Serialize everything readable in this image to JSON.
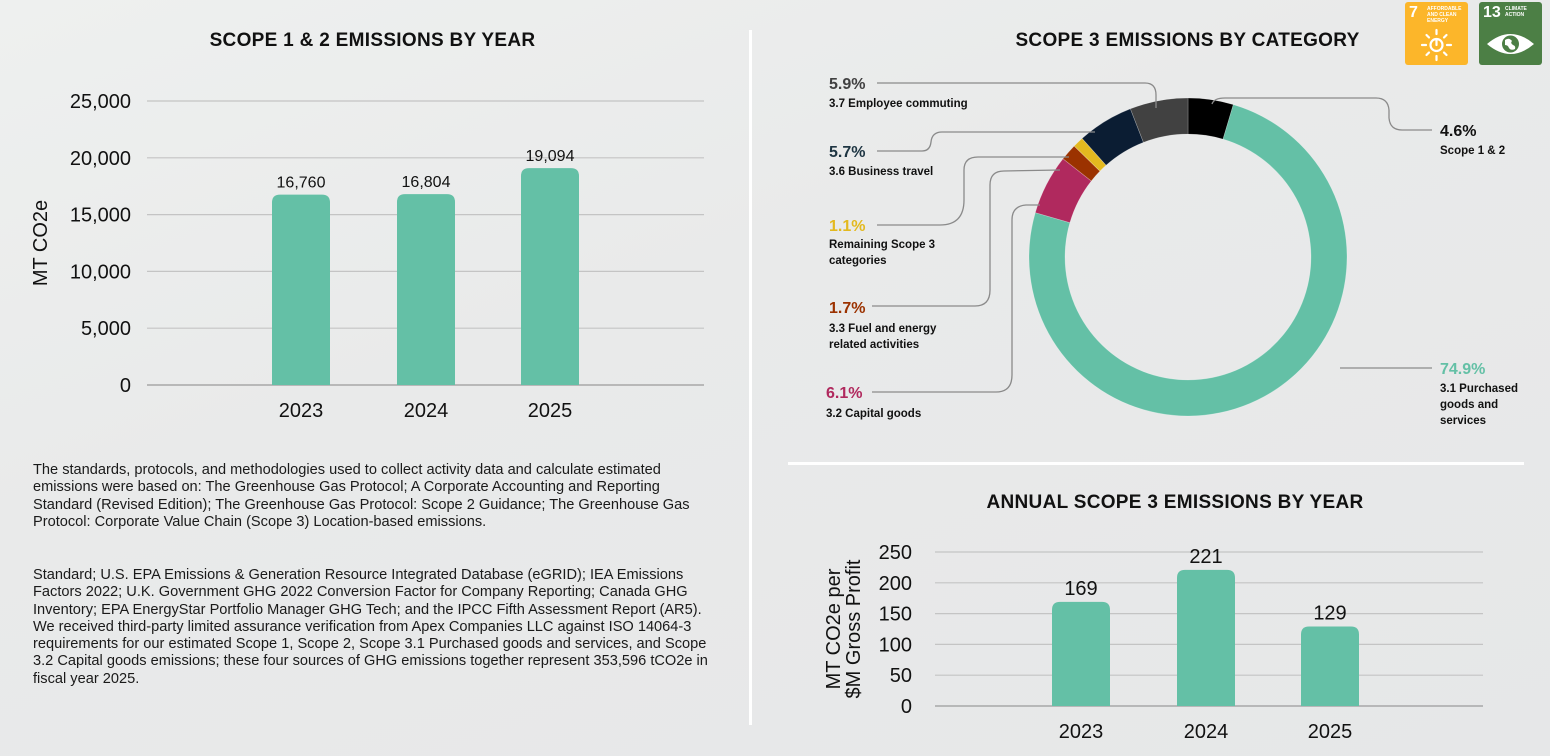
{
  "sdg_badges": [
    {
      "number": "7",
      "label": "Affordable and clean energy",
      "icon": "sun-power-icon",
      "color": "#FCB62A"
    },
    {
      "number": "13",
      "label": "Climate action",
      "icon": "eye-globe-icon",
      "color": "#4C7F45"
    }
  ],
  "paragraphs": [
    "The standards, protocols, and methodologies used to collect activity data and calculate estimated emissions were based on: The Greenhouse Gas Protocol; A Corporate Accounting and Reporting Standard (Revised Edition);  The Greenhouse Gas Protocol: Scope 2 Guidance; The Greenhouse Gas Protocol: Corporate Value Chain (Scope 3) Location-based emissions.",
    "Standard; U.S. EPA Emissions & Generation Resource Integrated Database (eGRID); IEA Emissions Factors 2022; U.K. Government GHG 2022 Conversion Factor for Company Reporting; Canada GHG Inventory; EPA EnergyStar Portfolio Manager GHG Tech; and the IPCC Fifth Assessment Report (AR5). We received third-party limited assurance verification from Apex Companies LLC against ISO 14064-3 requirements for our estimated Scope 1, Scope 2, Scope 3.1 Purchased goods and services, and Scope 3.2 Capital goods emissions; these four sources of GHG emissions together represent 353,596 tCO2e in fiscal year 2025."
  ],
  "chart_data": [
    {
      "type": "bar",
      "title": "SCOPE 1 & 2 EMISSIONS BY YEAR",
      "categories": [
        "2023",
        "2024",
        "2025"
      ],
      "values": [
        16760,
        16804,
        19094
      ],
      "value_labels": [
        "16,760",
        "16,804",
        "19,094"
      ],
      "xlabel": "",
      "ylabel": "MT CO2e",
      "ylim": [
        0,
        25000
      ],
      "yticks": [
        0,
        5000,
        10000,
        15000,
        20000,
        25000
      ],
      "ytick_labels": [
        "0",
        "5,000",
        "10,000",
        "15,000",
        "20,000",
        "25,000"
      ],
      "grid": true,
      "color": "#64C0A6"
    },
    {
      "type": "pie",
      "title": "SCOPE 3 EMISSIONS BY CATEGORY",
      "donut": true,
      "slices": [
        {
          "label": "Scope 1 & 2",
          "value": 4.6,
          "display": "4.6%",
          "color": "#000000",
          "text_color": "#111111"
        },
        {
          "label": "3.1 Purchased goods and services",
          "value": 74.9,
          "display": "74.9%",
          "color": "#64C0A6",
          "text_color": "#64C0A6"
        },
        {
          "label": "3.2 Capital goods",
          "value": 6.1,
          "display": "6.1%",
          "color": "#B0295E",
          "text_color": "#B0295E"
        },
        {
          "label": "3.3 Fuel and energy related activities",
          "value": 1.7,
          "display": "1.7%",
          "color": "#9B3200",
          "text_color": "#9B3200"
        },
        {
          "label": "Remaining Scope 3 categories",
          "value": 1.1,
          "display": "1.1%",
          "color": "#E3B91F",
          "text_color": "#E3B91F"
        },
        {
          "label": "3.6 Business travel",
          "value": 5.7,
          "display": "5.7%",
          "color": "#0B1D33",
          "text_color": "#1E3542"
        },
        {
          "label": "3.7 Employee commuting",
          "value": 5.9,
          "display": "5.9%",
          "color": "#414141",
          "text_color": "#414141"
        }
      ]
    },
    {
      "type": "bar",
      "title": "ANNUAL SCOPE 3 EMISSIONS BY YEAR",
      "categories": [
        "2023",
        "2024",
        "2025"
      ],
      "values": [
        169,
        221,
        129
      ],
      "value_labels": [
        "169",
        "221",
        "129"
      ],
      "xlabel": "",
      "ylabel": [
        "MT CO2e per",
        "$M Gross Profit"
      ],
      "ylim": [
        0,
        250
      ],
      "yticks": [
        0,
        50,
        100,
        150,
        200,
        250
      ],
      "ytick_labels": [
        "0",
        "50",
        "100",
        "150",
        "200",
        "250"
      ],
      "grid": true,
      "color": "#64C0A6"
    }
  ]
}
